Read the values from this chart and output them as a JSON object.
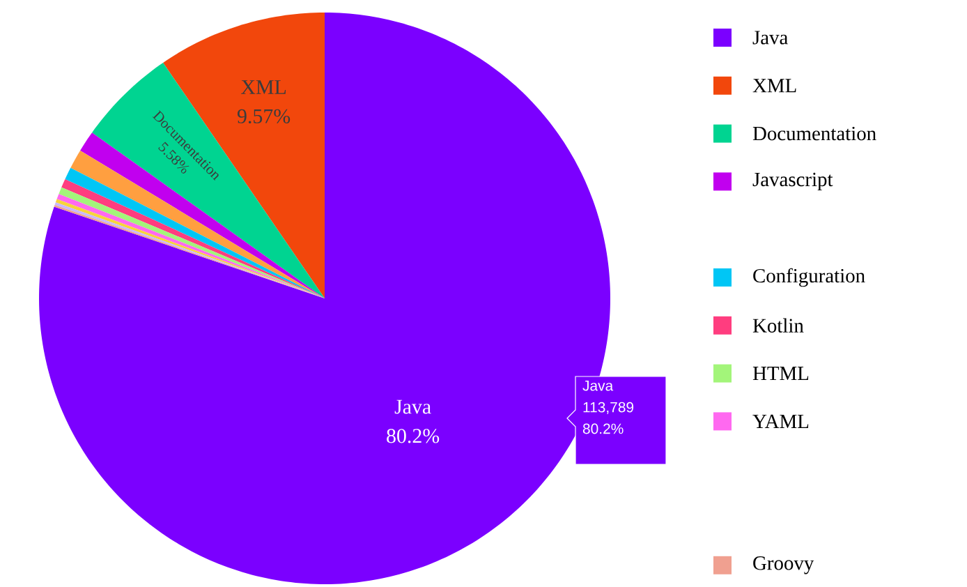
{
  "chart_data": {
    "type": "pie",
    "categories": [
      "Java",
      "XML",
      "Documentation",
      "Javascript",
      null,
      "Configuration",
      "Kotlin",
      "HTML",
      "YAML",
      null,
      null,
      "Groovy"
    ],
    "values": [
      80.2,
      9.57,
      5.58,
      1.2,
      1.1,
      0.7,
      0.5,
      0.4,
      0.3,
      0.2,
      0.15,
      0.1
    ],
    "colors": [
      "#7b00ff",
      "#f2470c",
      "#00d491",
      "#c100ef",
      "#ff9f40",
      "#00c6f5",
      "#ff3d7f",
      "#a3f57a",
      "#ff69f0",
      "#f7d43a",
      "#c9b8ff",
      "#f0a090"
    ],
    "value_labels": [
      "80.2%",
      "9.57%",
      "5.58%",
      null,
      null,
      null,
      null,
      null,
      null,
      null,
      null,
      null
    ],
    "annotations": [
      "Java",
      "113,789",
      "80.2%"
    ],
    "legend": "right"
  }
}
